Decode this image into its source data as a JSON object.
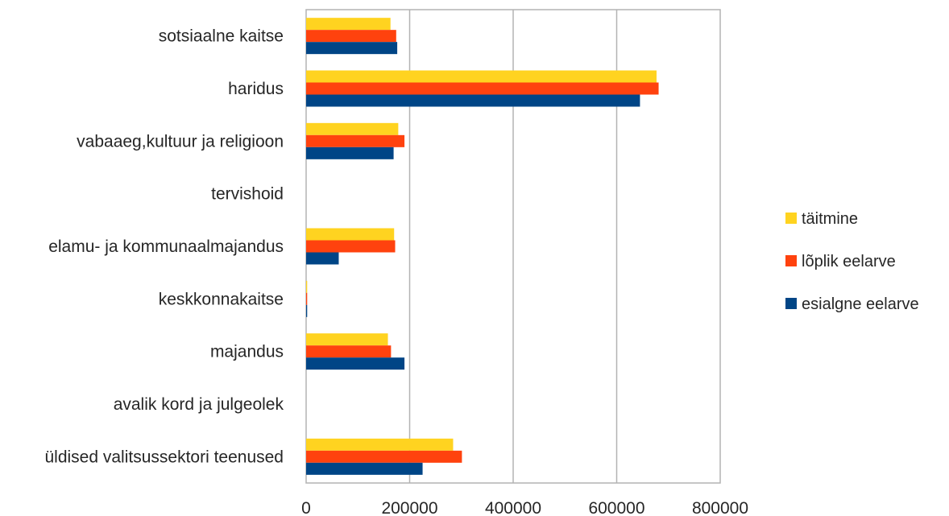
{
  "chart_data": {
    "type": "bar",
    "orientation": "horizontal",
    "categories": [
      "sotsiaalne kaitse",
      "haridus",
      "vabaaeg,kultuur ja religioon",
      "tervishoid",
      "elamu- ja kommunaalmajandus",
      "keskkonnakaitse",
      "majandus",
      "avalik kord ja julgeolek",
      "üldised valitsussektori teenused"
    ],
    "series": [
      {
        "name": "täitmine",
        "color": "#FFD320",
        "values": [
          163000,
          677000,
          178000,
          0,
          170000,
          2000,
          158000,
          0,
          284000
        ]
      },
      {
        "name": "lõplik eelarve",
        "color": "#FF420E",
        "values": [
          174000,
          681000,
          190000,
          0,
          172000,
          2000,
          164000,
          0,
          301000
        ]
      },
      {
        "name": "esialgne eelarve",
        "color": "#004586",
        "values": [
          176000,
          645000,
          169000,
          0,
          63000,
          2000,
          190000,
          0,
          225000
        ]
      }
    ],
    "xlim": [
      0,
      800000
    ],
    "xticks": [
      "0",
      "200000",
      "400000",
      "600000",
      "800000"
    ],
    "grid": true,
    "legend_position": "right",
    "title": "",
    "xlabel": "",
    "ylabel": ""
  }
}
